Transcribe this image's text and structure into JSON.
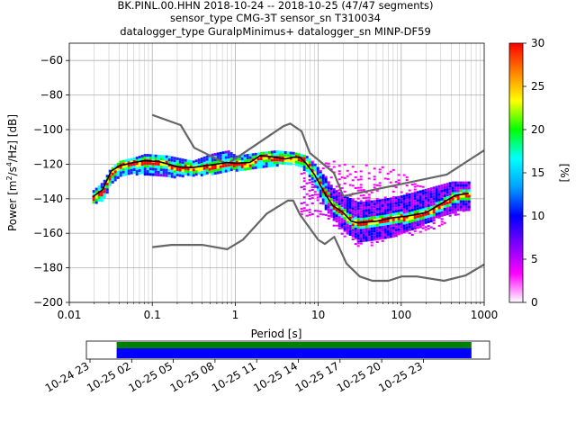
{
  "titles": {
    "line1": "BK.PINL.00.HHN   2018-10-24 -- 2018-10-25  (47/47 segments)",
    "line2": "sensor_type CMG-3T sensor_sn T310034",
    "line3": "datalogger_type GuralpMinimus+ datalogger_sn MINP-DF59"
  },
  "axes": {
    "xlabel": "Period [s]",
    "ylabel_prefix": "Power [m",
    "ylabel_mid1": "/s",
    "ylabel_mid2": "/Hz] [dB]",
    "ylabel_sup1": "2",
    "ylabel_sup2": "4",
    "x_ticks": [
      "0.01",
      "0.1",
      "1",
      "10",
      "100",
      "1000"
    ],
    "y_ticks": [
      "−60",
      "−80",
      "−100",
      "−120",
      "−140",
      "−160",
      "−180",
      "−200"
    ],
    "colorbar_label": "[%]",
    "colorbar_ticks": [
      "0",
      "5",
      "10",
      "15",
      "20",
      "25",
      "30"
    ],
    "time_ticks": [
      "10-24 23",
      "10-25 02",
      "10-25 05",
      "10-25 08",
      "10-25 11",
      "10-25 14",
      "10-25 17",
      "10-25 20",
      "10-25 23"
    ]
  },
  "chart_data": {
    "type": "heatmap",
    "xscale": "log",
    "xlim": [
      0.01,
      1000
    ],
    "ylim": [
      -200,
      -50
    ],
    "colorbar_range": [
      0,
      30
    ],
    "colormap": [
      "#ffffff",
      "#ff00ff",
      "#8000ff",
      "#0000ff",
      "#00a0ff",
      "#00ffff",
      "#00ff00",
      "#ffff00",
      "#ff8000",
      "#ff0000"
    ],
    "grid": true,
    "noise_models": {
      "color": "#666666",
      "nhnm": [
        [
          0.1,
          -91.5
        ],
        [
          0.22,
          -97.4
        ],
        [
          0.32,
          -110.5
        ],
        [
          0.8,
          -120
        ],
        [
          3.8,
          -98
        ],
        [
          4.6,
          -96.5
        ],
        [
          6.3,
          -101
        ],
        [
          7.9,
          -113.5
        ],
        [
          15.4,
          -125
        ],
        [
          20,
          -138.5
        ],
        [
          354.8,
          -126
        ],
        [
          1000,
          -112
        ]
      ],
      "nlnm": [
        [
          0.1,
          -168
        ],
        [
          0.17,
          -166.7
        ],
        [
          0.4,
          -166.7
        ],
        [
          0.8,
          -169.2
        ],
        [
          1.24,
          -163.7
        ],
        [
          2.4,
          -148.6
        ],
        [
          4.3,
          -141.1
        ],
        [
          5,
          -141.1
        ],
        [
          6,
          -149
        ],
        [
          10,
          -163.8
        ],
        [
          12,
          -166.2
        ],
        [
          15.6,
          -162.1
        ],
        [
          21.9,
          -177.5
        ],
        [
          31.6,
          -185
        ],
        [
          45,
          -187.5
        ],
        [
          70,
          -187.5
        ],
        [
          101,
          -185
        ],
        [
          154,
          -185
        ],
        [
          328,
          -187.5
        ],
        [
          600,
          -184.4
        ],
        [
          1000,
          -178
        ]
      ]
    },
    "mode_line": {
      "color": "#000000",
      "points": [
        [
          0.019,
          -139
        ],
        [
          0.025,
          -135
        ],
        [
          0.028,
          -130
        ],
        [
          0.032,
          -124
        ],
        [
          0.04,
          -121
        ],
        [
          0.06,
          -119
        ],
        [
          0.08,
          -118
        ],
        [
          0.12,
          -118.5
        ],
        [
          0.2,
          -121.5
        ],
        [
          0.3,
          -122
        ],
        [
          0.5,
          -120.5
        ],
        [
          0.8,
          -119
        ],
        [
          1.0,
          -119.5
        ],
        [
          1.5,
          -119
        ],
        [
          2.0,
          -115
        ],
        [
          3.0,
          -116
        ],
        [
          4.0,
          -117
        ],
        [
          5.0,
          -116
        ],
        [
          6.0,
          -116
        ],
        [
          7.0,
          -119
        ],
        [
          9.0,
          -126
        ],
        [
          12,
          -137
        ],
        [
          15,
          -144
        ],
        [
          20,
          -148
        ],
        [
          25,
          -153
        ],
        [
          30,
          -154
        ],
        [
          50,
          -153
        ],
        [
          80,
          -151
        ],
        [
          120,
          -150
        ],
        [
          200,
          -148
        ],
        [
          300,
          -143
        ],
        [
          450,
          -138
        ],
        [
          650,
          -137
        ]
      ]
    },
    "psd_cloud": {
      "upper": [
        [
          0.019,
          -135
        ],
        [
          0.025,
          -130
        ],
        [
          0.03,
          -123
        ],
        [
          0.04,
          -118
        ],
        [
          0.06,
          -116
        ],
        [
          0.08,
          -114
        ],
        [
          0.15,
          -115
        ],
        [
          0.3,
          -118
        ],
        [
          0.5,
          -114
        ],
        [
          0.8,
          -112
        ],
        [
          1.0,
          -115
        ],
        [
          2.0,
          -113
        ],
        [
          3.0,
          -112
        ],
        [
          5.0,
          -113
        ],
        [
          7.0,
          -115
        ],
        [
          9.0,
          -120
        ],
        [
          12,
          -128
        ],
        [
          15,
          -134
        ],
        [
          20,
          -138
        ],
        [
          30,
          -142
        ],
        [
          60,
          -140
        ],
        [
          100,
          -138
        ],
        [
          200,
          -134
        ],
        [
          400,
          -130
        ],
        [
          650,
          -130
        ]
      ],
      "lower": [
        [
          0.019,
          -142
        ],
        [
          0.025,
          -140
        ],
        [
          0.03,
          -132
        ],
        [
          0.04,
          -127
        ],
        [
          0.06,
          -125
        ],
        [
          0.1,
          -126
        ],
        [
          0.15,
          -127
        ],
        [
          0.3,
          -126
        ],
        [
          0.5,
          -125
        ],
        [
          0.8,
          -124
        ],
        [
          1.0,
          -123
        ],
        [
          2.0,
          -121
        ],
        [
          3.0,
          -120
        ],
        [
          5.0,
          -119
        ],
        [
          7.0,
          -124
        ],
        [
          9.0,
          -133
        ],
        [
          12,
          -146
        ],
        [
          15,
          -152
        ],
        [
          20,
          -158
        ],
        [
          30,
          -164
        ],
        [
          50,
          -163
        ],
        [
          80,
          -161
        ],
        [
          120,
          -158
        ],
        [
          200,
          -154
        ],
        [
          350,
          -148
        ],
        [
          650,
          -146
        ]
      ],
      "outlier_upper": [
        [
          7.0,
          -116
        ],
        [
          10,
          -117
        ],
        [
          15,
          -118
        ],
        [
          25,
          -121
        ],
        [
          40,
          -120
        ],
        [
          70,
          -122
        ],
        [
          100,
          -125
        ],
        [
          150,
          -132
        ],
        [
          250,
          -134
        ],
        [
          450,
          -132
        ],
        [
          600,
          -130
        ]
      ],
      "outlier_lower": [
        [
          12,
          -150
        ],
        [
          20,
          -162
        ],
        [
          30,
          -168
        ],
        [
          50,
          -166
        ],
        [
          80,
          -164
        ],
        [
          120,
          -161
        ],
        [
          200,
          -158
        ],
        [
          300,
          -156
        ],
        [
          500,
          -148
        ],
        [
          650,
          -144
        ]
      ]
    },
    "data_coverage": {
      "timeline_start": "10-24 23",
      "timeline_end": "10-26 00",
      "covered_fraction_start": 0.075,
      "covered_fraction_end": 0.955,
      "colors": [
        "#008000",
        "#0000ff"
      ]
    }
  }
}
